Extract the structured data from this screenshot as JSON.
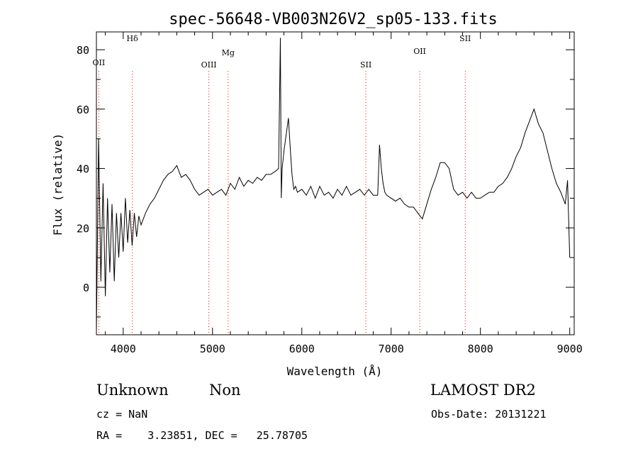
{
  "chart_data": {
    "type": "line",
    "title": "spec-56648-VB003N26V2_sp05-133.fits",
    "xlabel": "Wavelength (Å)",
    "ylabel": "Flux (relative)",
    "xlim": [
      3700,
      9050
    ],
    "ylim": [
      -16,
      86
    ],
    "x_ticks": [
      4000,
      5000,
      6000,
      7000,
      8000,
      9000
    ],
    "y_ticks": [
      0,
      20,
      40,
      60,
      80
    ],
    "grid": false,
    "line_color": "#000000",
    "marker_color": "#ff0000",
    "spectral_lines": [
      {
        "label": "OII",
        "wavelength": 3727
      },
      {
        "label": "Hδ",
        "wavelength": 4102
      },
      {
        "label": "OIII",
        "wavelength": 4959
      },
      {
        "label": "Mg",
        "wavelength": 5175
      },
      {
        "label": "SII",
        "wavelength": 6717
      },
      {
        "label": "OII",
        "wavelength": 7320
      },
      {
        "label": "SII",
        "wavelength": 7830
      }
    ],
    "series": [
      {
        "x": [
          3700,
          3725,
          3750,
          3775,
          3800,
          3825,
          3850,
          3875,
          3900,
          3925,
          3950,
          3975,
          4000,
          4025,
          4050,
          4075,
          4100,
          4125,
          4150,
          4175,
          4200,
          4250,
          4300,
          4350,
          4400,
          4450,
          4500,
          4550,
          4600,
          4650,
          4700,
          4750,
          4800,
          4850,
          4900,
          4950,
          5000,
          5050,
          5100,
          5150,
          5200,
          5250,
          5300,
          5350,
          5400,
          5450,
          5500,
          5550,
          5600,
          5650,
          5700,
          5740,
          5760,
          5770,
          5780,
          5800,
          5850,
          5870,
          5890,
          5910,
          5930,
          5950,
          6000,
          6050,
          6100,
          6150,
          6200,
          6250,
          6300,
          6350,
          6400,
          6450,
          6500,
          6550,
          6600,
          6650,
          6700,
          6750,
          6800,
          6850,
          6870,
          6890,
          6910,
          6930,
          6950,
          7000,
          7050,
          7100,
          7150,
          7200,
          7250,
          7300,
          7350,
          7400,
          7450,
          7500,
          7550,
          7600,
          7650,
          7700,
          7750,
          7800,
          7850,
          7900,
          7950,
          8000,
          8050,
          8100,
          8150,
          8200,
          8250,
          8300,
          8350,
          8400,
          8450,
          8500,
          8550,
          8600,
          8620,
          8650,
          8700,
          8750,
          8800,
          8850,
          8900,
          8950,
          8975,
          9000
        ],
        "y": [
          -15,
          50,
          2,
          35,
          -3,
          30,
          5,
          28,
          2,
          25,
          10,
          25,
          12,
          30,
          15,
          26,
          14,
          25,
          17,
          24,
          21,
          25,
          28,
          30,
          33,
          36,
          38,
          39,
          41,
          37,
          38,
          36,
          33,
          31,
          32,
          33,
          31,
          32,
          33,
          31,
          35,
          33,
          37,
          34,
          36,
          35,
          37,
          36,
          38,
          38,
          39,
          40,
          84,
          30,
          40,
          46,
          57,
          47,
          38,
          33,
          34,
          32,
          33,
          31,
          34,
          30,
          34,
          31,
          32,
          30,
          33,
          31,
          34,
          31,
          32,
          33,
          31,
          33,
          31,
          31,
          48,
          40,
          35,
          32,
          31,
          30,
          29,
          30,
          28,
          27,
          27,
          25,
          23,
          28,
          33,
          37,
          42,
          42,
          40,
          33,
          31,
          32,
          30,
          32,
          30,
          30,
          31,
          32,
          32,
          34,
          35,
          37,
          40,
          44,
          47,
          52,
          56,
          60,
          58,
          55,
          52,
          46,
          40,
          35,
          32,
          28,
          36,
          10
        ]
      }
    ]
  },
  "info": {
    "object_class": "Unknown",
    "object_subclass": "Non",
    "survey": "LAMOST DR2",
    "cz": "cz = NaN",
    "obs_date": "Obs-Date: 20131221",
    "coords": "RA =    3.23851, DEC =   25.78705"
  }
}
